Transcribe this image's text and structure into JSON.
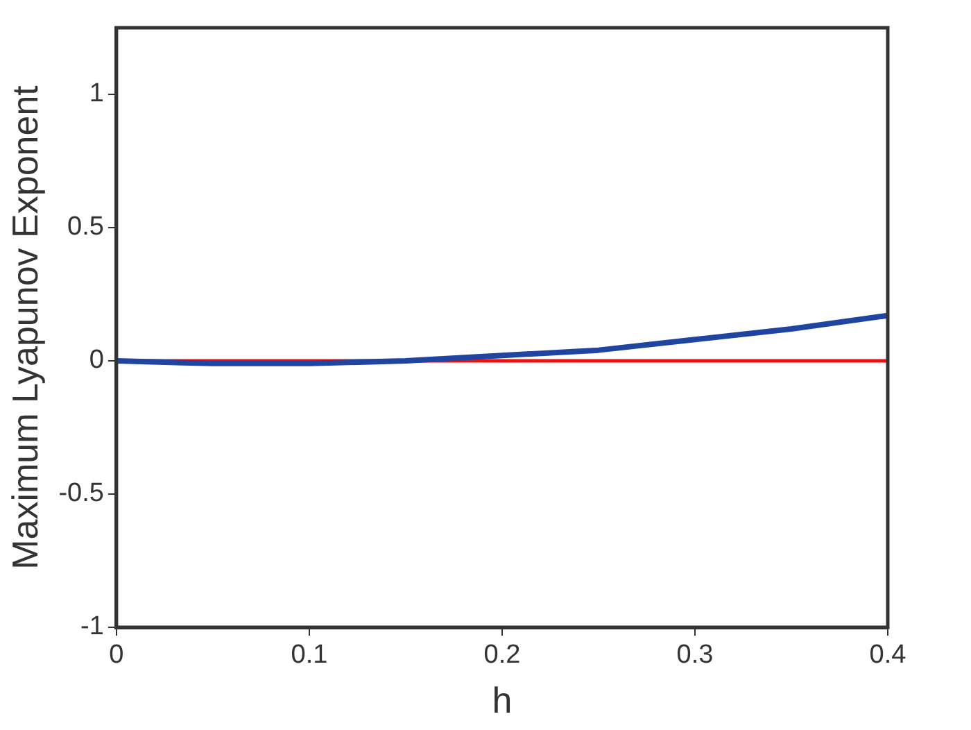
{
  "chart_data": {
    "type": "line",
    "xlabel": "h",
    "ylabel": "Maximum Lyapunov Exponent",
    "x": [
      0,
      0.05,
      0.1,
      0.15,
      0.2,
      0.25,
      0.3,
      0.35,
      0.4
    ],
    "series": [
      {
        "color": "#1f45a0",
        "values": [
          0,
          -0.01,
          -0.01,
          0,
          0.02,
          0.04,
          0.08,
          0.12,
          0.17
        ]
      }
    ],
    "ref_lines": [
      {
        "axis": "y",
        "value": 0,
        "color": "#ee1111"
      }
    ],
    "xlim": [
      0,
      0.4
    ],
    "xticks": [
      0,
      0.1,
      0.2,
      0.3,
      0.4
    ],
    "ylim": [
      -1,
      1.25
    ],
    "yticks": [
      -1,
      -0.5,
      0,
      0.5,
      1
    ],
    "grid": false,
    "legend": false,
    "marker": "none",
    "line_style": "solid"
  }
}
